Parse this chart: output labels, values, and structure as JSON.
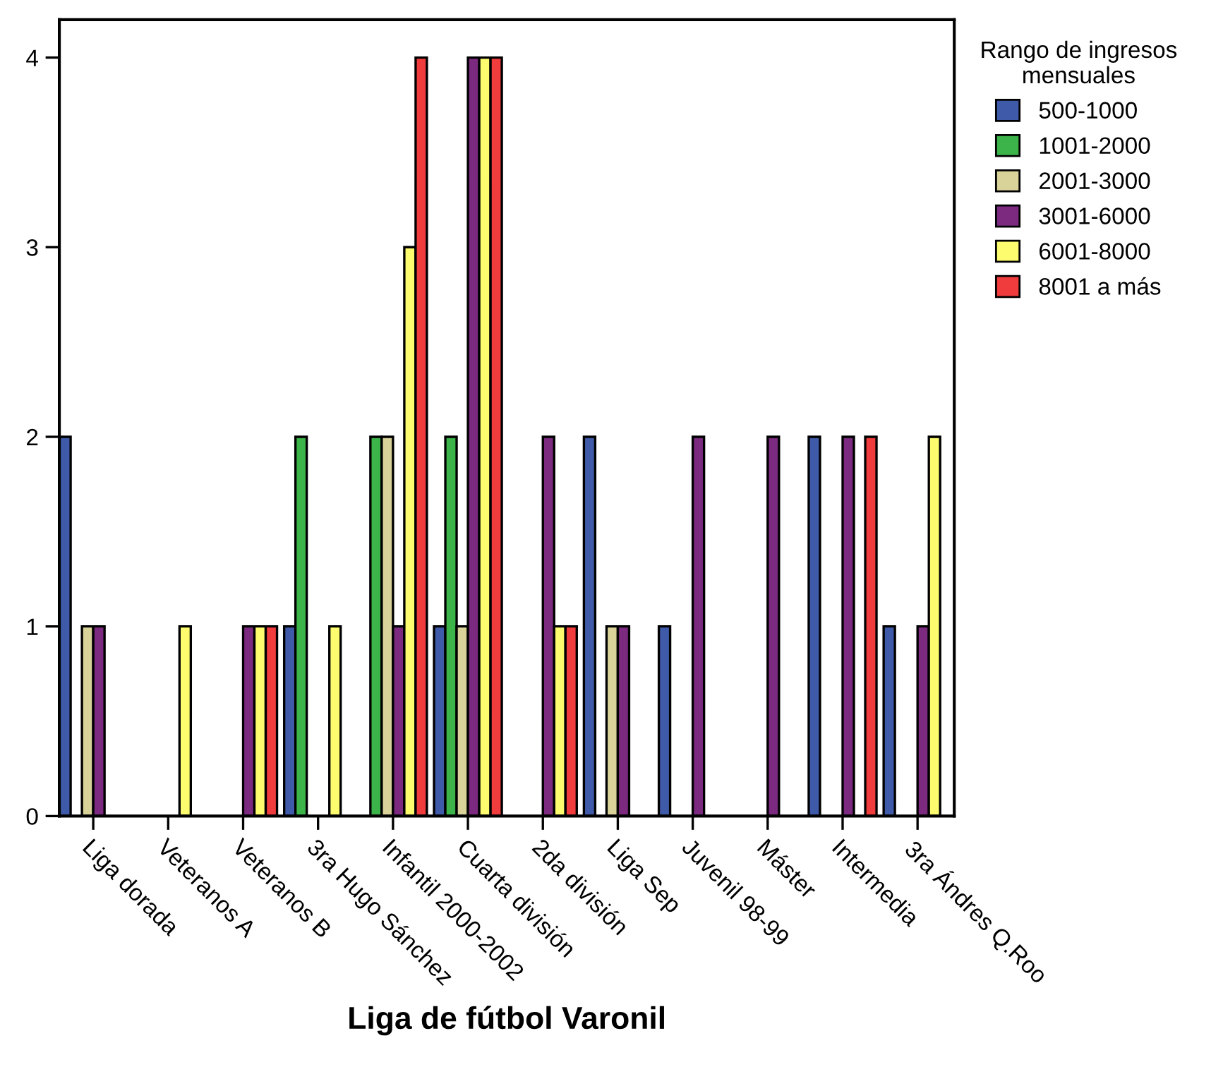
{
  "chart_data": {
    "type": "bar",
    "xlabel": "Liga de fútbol Varonil",
    "legend_title": "Rango de ingresos\nmensuales",
    "categories": [
      "Liga dorada",
      "Veteranos A",
      "Veteranos B",
      "3ra Hugo Sánchez",
      "Infantil 2000-2002",
      "Cuarta división",
      "2da división",
      "Liga Sep",
      "Juvenil 98-99",
      "Máster",
      "Intermedia",
      "3ra Ándres Q.Roo"
    ],
    "series": [
      {
        "name": "500-1000",
        "color": "#3f5aa8",
        "values": [
          2,
          null,
          null,
          1,
          null,
          1,
          null,
          2,
          1,
          null,
          2,
          1
        ]
      },
      {
        "name": "1001-2000",
        "color": "#3cb44a",
        "values": [
          null,
          null,
          null,
          2,
          2,
          2,
          null,
          null,
          null,
          null,
          null,
          null
        ]
      },
      {
        "name": "2001-3000",
        "color": "#d9d39a",
        "values": [
          1,
          null,
          null,
          null,
          2,
          1,
          null,
          1,
          null,
          null,
          null,
          null
        ]
      },
      {
        "name": "3001-6000",
        "color": "#7b2a7f",
        "values": [
          1,
          null,
          1,
          null,
          1,
          4,
          2,
          1,
          2,
          2,
          2,
          1
        ]
      },
      {
        "name": "6001-8000",
        "color": "#fcfc6e",
        "values": [
          null,
          1,
          1,
          1,
          3,
          4,
          1,
          null,
          null,
          null,
          null,
          2
        ]
      },
      {
        "name": "8001 a más",
        "color": "#f03c3c",
        "values": [
          null,
          null,
          1,
          null,
          4,
          4,
          1,
          null,
          null,
          null,
          2,
          null
        ]
      }
    ],
    "ylim": [
      0,
      4.2
    ],
    "yticks": [
      0,
      1,
      2,
      3,
      4
    ],
    "grid": false,
    "legend": "top right"
  }
}
